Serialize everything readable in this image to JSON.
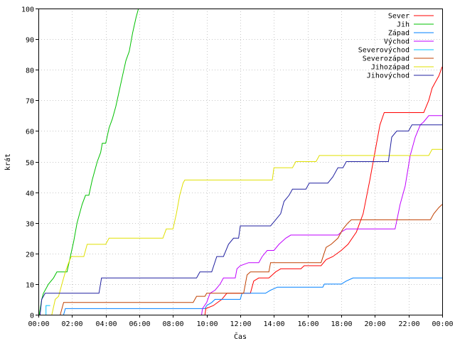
{
  "chart_data": {
    "type": "line",
    "title": "",
    "xlabel": "Čas",
    "ylabel": "krát",
    "xlim": [
      0,
      24
    ],
    "ylim": [
      0,
      100
    ],
    "grid": true,
    "legend_placement": "top-right",
    "x_ticks": [
      {
        "value": 0,
        "label": "00:00"
      },
      {
        "value": 2,
        "label": "02:00"
      },
      {
        "value": 4,
        "label": "04:00"
      },
      {
        "value": 6,
        "label": "06:00"
      },
      {
        "value": 8,
        "label": "08:00"
      },
      {
        "value": 10,
        "label": "10:00"
      },
      {
        "value": 12,
        "label": "12:00"
      },
      {
        "value": 14,
        "label": "14:00"
      },
      {
        "value": 16,
        "label": "16:00"
      },
      {
        "value": 18,
        "label": "18:00"
      },
      {
        "value": 20,
        "label": "20:00"
      },
      {
        "value": 22,
        "label": "22:00"
      },
      {
        "value": 24,
        "label": "00:00"
      }
    ],
    "y_ticks": [
      {
        "value": 0,
        "label": "0"
      },
      {
        "value": 10,
        "label": "10"
      },
      {
        "value": 20,
        "label": "20"
      },
      {
        "value": 30,
        "label": "30"
      },
      {
        "value": 40,
        "label": "40"
      },
      {
        "value": 50,
        "label": "50"
      },
      {
        "value": 60,
        "label": "60"
      },
      {
        "value": 70,
        "label": "70"
      },
      {
        "value": 80,
        "label": "80"
      },
      {
        "value": 90,
        "label": "90"
      },
      {
        "value": 100,
        "label": "100"
      }
    ],
    "series": [
      {
        "name": "Sever",
        "color": "#ff0000",
        "points": [
          [
            9.9,
            0
          ],
          [
            9.95,
            2
          ],
          [
            10.4,
            3
          ],
          [
            10.9,
            5
          ],
          [
            11.2,
            7
          ],
          [
            12.6,
            7
          ],
          [
            12.8,
            11
          ],
          [
            13.1,
            12
          ],
          [
            13.7,
            12
          ],
          [
            13.9,
            13
          ],
          [
            14.1,
            14
          ],
          [
            14.4,
            15
          ],
          [
            15.6,
            15
          ],
          [
            15.8,
            16
          ],
          [
            16.8,
            16
          ],
          [
            17.1,
            18
          ],
          [
            17.5,
            19
          ],
          [
            18.0,
            21
          ],
          [
            18.4,
            23
          ],
          [
            18.9,
            27
          ],
          [
            19.3,
            33
          ],
          [
            19.7,
            44
          ],
          [
            20.0,
            53
          ],
          [
            20.3,
            62
          ],
          [
            20.55,
            66
          ],
          [
            22.9,
            66
          ],
          [
            23.2,
            70
          ],
          [
            23.4,
            74
          ],
          [
            23.6,
            76
          ],
          [
            23.8,
            78
          ],
          [
            24.0,
            81
          ]
        ]
      },
      {
        "name": "Jih",
        "color": "#00c000",
        "points": [
          [
            0.05,
            0
          ],
          [
            0.2,
            5
          ],
          [
            0.3,
            7
          ],
          [
            0.4,
            8
          ],
          [
            0.6,
            10
          ],
          [
            0.9,
            12
          ],
          [
            1.1,
            14
          ],
          [
            1.7,
            14
          ],
          [
            1.9,
            19
          ],
          [
            2.1,
            24
          ],
          [
            2.3,
            30
          ],
          [
            2.6,
            36
          ],
          [
            2.8,
            39
          ],
          [
            3.0,
            39
          ],
          [
            3.2,
            44
          ],
          [
            3.5,
            50
          ],
          [
            3.7,
            53
          ],
          [
            3.8,
            56
          ],
          [
            4.0,
            56
          ],
          [
            4.2,
            61
          ],
          [
            4.4,
            64
          ],
          [
            4.6,
            68
          ],
          [
            4.8,
            73
          ],
          [
            5.0,
            78
          ],
          [
            5.2,
            83
          ],
          [
            5.4,
            86
          ],
          [
            5.6,
            92
          ],
          [
            5.8,
            97
          ],
          [
            5.95,
            100
          ]
        ]
      },
      {
        "name": "Západ",
        "color": "#0080ff",
        "points": [
          [
            1.5,
            0
          ],
          [
            1.6,
            2
          ],
          [
            9.9,
            2
          ],
          [
            10.0,
            3
          ],
          [
            10.3,
            4
          ],
          [
            10.5,
            5
          ],
          [
            12.0,
            5
          ],
          [
            12.1,
            7
          ],
          [
            13.5,
            7
          ],
          [
            13.8,
            8
          ],
          [
            14.2,
            9
          ],
          [
            16.9,
            9
          ],
          [
            17.0,
            10
          ],
          [
            18.0,
            10
          ],
          [
            18.3,
            11
          ],
          [
            18.7,
            12
          ],
          [
            24.0,
            12
          ]
        ]
      },
      {
        "name": "Východ",
        "color": "#c000ff",
        "points": [
          [
            9.7,
            0
          ],
          [
            9.75,
            2
          ],
          [
            10.0,
            4
          ],
          [
            10.2,
            7
          ],
          [
            10.5,
            8
          ],
          [
            10.8,
            10
          ],
          [
            11.0,
            12
          ],
          [
            11.7,
            12
          ],
          [
            11.8,
            15
          ],
          [
            12.0,
            16
          ],
          [
            12.5,
            17
          ],
          [
            13.1,
            17
          ],
          [
            13.3,
            19
          ],
          [
            13.6,
            21
          ],
          [
            14.0,
            21
          ],
          [
            14.3,
            23
          ],
          [
            14.7,
            25
          ],
          [
            15.0,
            26
          ],
          [
            17.8,
            26
          ],
          [
            18.0,
            27
          ],
          [
            18.3,
            28
          ],
          [
            21.2,
            28
          ],
          [
            21.5,
            36
          ],
          [
            21.8,
            42
          ],
          [
            22.1,
            52
          ],
          [
            22.4,
            58
          ],
          [
            22.7,
            62
          ],
          [
            22.9,
            63
          ],
          [
            23.2,
            65
          ],
          [
            24.0,
            65
          ]
        ]
      },
      {
        "name": "Severovýchod",
        "color": "#00c0ff",
        "points": [
          [
            0.45,
            0
          ],
          [
            0.45,
            3
          ],
          [
            0.7,
            3
          ]
        ]
      },
      {
        "name": "Severozápad",
        "color": "#c04000",
        "points": [
          [
            1.3,
            0
          ],
          [
            1.5,
            4
          ],
          [
            9.2,
            4
          ],
          [
            9.4,
            6
          ],
          [
            9.9,
            6
          ],
          [
            10.0,
            7
          ],
          [
            12.2,
            7
          ],
          [
            12.4,
            13
          ],
          [
            12.6,
            14
          ],
          [
            13.7,
            14
          ],
          [
            13.8,
            17
          ],
          [
            16.8,
            17
          ],
          [
            17.1,
            22
          ],
          [
            17.4,
            23
          ],
          [
            17.8,
            25
          ],
          [
            18.1,
            28
          ],
          [
            18.4,
            30
          ],
          [
            18.6,
            31
          ],
          [
            23.3,
            31
          ],
          [
            23.5,
            33
          ],
          [
            23.8,
            35
          ],
          [
            24.0,
            36
          ]
        ]
      },
      {
        "name": "Jihozápad",
        "color": "#e0e000",
        "points": [
          [
            0.8,
            0
          ],
          [
            1.0,
            5
          ],
          [
            1.2,
            6
          ],
          [
            1.4,
            10
          ],
          [
            1.6,
            14
          ],
          [
            1.8,
            17
          ],
          [
            1.95,
            19
          ],
          [
            2.7,
            19
          ],
          [
            2.9,
            23
          ],
          [
            4.0,
            23
          ],
          [
            4.2,
            25
          ],
          [
            7.4,
            25
          ],
          [
            7.6,
            28
          ],
          [
            8.0,
            28
          ],
          [
            8.2,
            33
          ],
          [
            8.4,
            39
          ],
          [
            8.6,
            43
          ],
          [
            8.7,
            44
          ],
          [
            13.9,
            44
          ],
          [
            14.0,
            48
          ],
          [
            15.1,
            48
          ],
          [
            15.3,
            50
          ],
          [
            16.5,
            50
          ],
          [
            16.7,
            52
          ],
          [
            23.2,
            52
          ],
          [
            23.4,
            54
          ],
          [
            24.0,
            54
          ]
        ]
      },
      {
        "name": "Jihovýchod",
        "color": "#2020a0",
        "points": [
          [
            0.1,
            0
          ],
          [
            0.2,
            5
          ],
          [
            0.4,
            7
          ],
          [
            3.6,
            7
          ],
          [
            3.75,
            12
          ],
          [
            9.4,
            12
          ],
          [
            9.6,
            14
          ],
          [
            10.3,
            14
          ],
          [
            10.6,
            19
          ],
          [
            11.0,
            19
          ],
          [
            11.3,
            23
          ],
          [
            11.6,
            25
          ],
          [
            11.9,
            25
          ],
          [
            12.0,
            29
          ],
          [
            13.8,
            29
          ],
          [
            14.1,
            31
          ],
          [
            14.4,
            33
          ],
          [
            14.6,
            37
          ],
          [
            14.9,
            39
          ],
          [
            15.1,
            41
          ],
          [
            15.9,
            41
          ],
          [
            16.1,
            43
          ],
          [
            17.2,
            43
          ],
          [
            17.5,
            45
          ],
          [
            17.8,
            48
          ],
          [
            18.1,
            48
          ],
          [
            18.3,
            50
          ],
          [
            20.8,
            50
          ],
          [
            21.0,
            58
          ],
          [
            21.3,
            60
          ],
          [
            22.0,
            60
          ],
          [
            22.2,
            62
          ],
          [
            24.0,
            62
          ]
        ]
      }
    ]
  }
}
